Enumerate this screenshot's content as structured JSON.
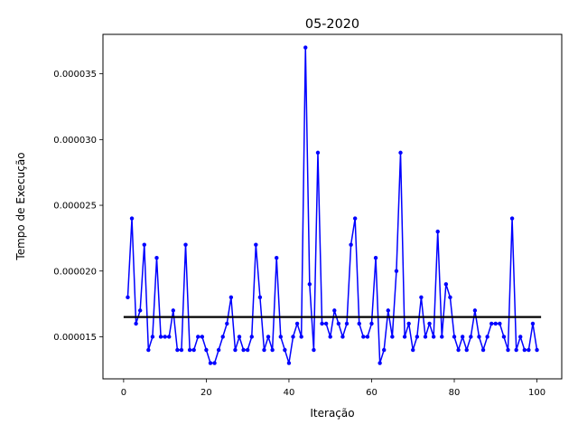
{
  "chart_data": {
    "type": "line",
    "title": "05-2020",
    "xlabel": "Iteração",
    "ylabel": "Tempo de Execução",
    "xlim": [
      -5,
      106
    ],
    "ylim": [
      1.18e-05,
      3.8e-05
    ],
    "xticks": [
      0,
      20,
      40,
      60,
      80,
      100
    ],
    "xtick_labels": [
      "0",
      "20",
      "40",
      "60",
      "80",
      "100"
    ],
    "yticks": [
      1.5e-05,
      2e-05,
      2.5e-05,
      3e-05,
      3.5e-05
    ],
    "ytick_labels": [
      "0.000015",
      "0.000020",
      "0.000025",
      "0.000030",
      "0.000035"
    ],
    "grid": false,
    "series": [
      {
        "color": "#0000ff",
        "marker": "circle",
        "x": [
          1,
          2,
          3,
          4,
          5,
          6,
          7,
          8,
          9,
          10,
          11,
          12,
          13,
          14,
          15,
          16,
          17,
          18,
          19,
          20,
          21,
          22,
          23,
          24,
          25,
          26,
          27,
          28,
          29,
          30,
          31,
          32,
          33,
          34,
          35,
          36,
          37,
          38,
          39,
          40,
          41,
          42,
          43,
          44,
          45,
          46,
          47,
          48,
          49,
          50,
          51,
          52,
          53,
          54,
          55,
          56,
          57,
          58,
          59,
          60,
          61,
          62,
          63,
          64,
          65,
          66,
          67,
          68,
          69,
          70,
          71,
          72,
          73,
          74,
          75,
          76,
          77,
          78,
          79,
          80,
          81,
          82,
          83,
          84,
          85,
          86,
          87,
          88,
          89,
          90,
          91,
          92,
          93,
          94,
          95,
          96,
          97,
          98,
          99,
          100
        ],
        "values": [
          1.8e-05,
          2.4e-05,
          1.6e-05,
          1.7e-05,
          2.2e-05,
          1.4e-05,
          1.5e-05,
          2.1e-05,
          1.5e-05,
          1.5e-05,
          1.5e-05,
          1.7e-05,
          1.4e-05,
          1.4e-05,
          2.2e-05,
          1.4e-05,
          1.4e-05,
          1.5e-05,
          1.5e-05,
          1.4e-05,
          1.3e-05,
          1.3e-05,
          1.4e-05,
          1.5e-05,
          1.6e-05,
          1.8e-05,
          1.4e-05,
          1.5e-05,
          1.4e-05,
          1.4e-05,
          1.5e-05,
          2.2e-05,
          1.8e-05,
          1.4e-05,
          1.5e-05,
          1.4e-05,
          2.1e-05,
          1.5e-05,
          1.4e-05,
          1.3e-05,
          1.5e-05,
          1.6e-05,
          1.5e-05,
          3.7e-05,
          1.9e-05,
          1.4e-05,
          2.9e-05,
          1.6e-05,
          1.6e-05,
          1.5e-05,
          1.7e-05,
          1.6e-05,
          1.5e-05,
          1.6e-05,
          2.2e-05,
          2.4e-05,
          1.6e-05,
          1.5e-05,
          1.5e-05,
          1.6e-05,
          2.1e-05,
          1.3e-05,
          1.4e-05,
          1.7e-05,
          1.5e-05,
          2e-05,
          2.9e-05,
          1.5e-05,
          1.6e-05,
          1.4e-05,
          1.5e-05,
          1.8e-05,
          1.5e-05,
          1.6e-05,
          1.5e-05,
          2.3e-05,
          1.5e-05,
          1.9e-05,
          1.8e-05,
          1.5e-05,
          1.4e-05,
          1.5e-05,
          1.4e-05,
          1.5e-05,
          1.7e-05,
          1.5e-05,
          1.4e-05,
          1.5e-05,
          1.6e-05,
          1.6e-05,
          1.6e-05,
          1.5e-05,
          1.4e-05,
          2.4e-05,
          1.4e-05,
          1.5e-05,
          1.4e-05,
          1.4e-05,
          1.6e-05,
          1.4e-05
        ]
      },
      {
        "color": "#000000",
        "style": "horizontal-line",
        "x": [
          0,
          101
        ],
        "values": [
          1.65e-05,
          1.65e-05
        ]
      }
    ]
  }
}
